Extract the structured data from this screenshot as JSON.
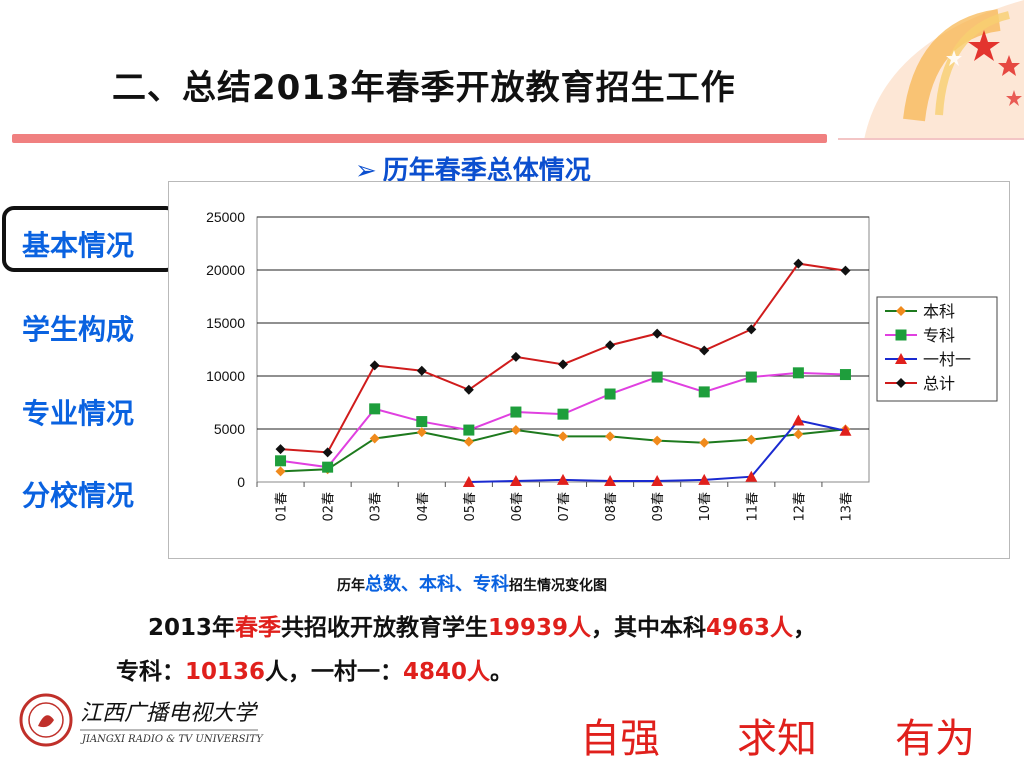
{
  "slide": {
    "title": "二、总结2013年春季开放教育招生工作",
    "subtitle_arrow": "➢",
    "subtitle": "历年春季总体情况"
  },
  "sidebar": {
    "items": [
      {
        "label": "基本情况"
      },
      {
        "label": "学生构成"
      },
      {
        "label": "专业情况"
      },
      {
        "label": "分校情况"
      }
    ]
  },
  "caption": {
    "prefix": "历年",
    "blue": "总数、本科、专科",
    "suffix": "招生情况变化图"
  },
  "summary": {
    "p1_a": "2013年",
    "p1_b": "春季",
    "p1_c": "共招收开放教育学生",
    "p1_d": "19939人",
    "p1_e": "，其中本科",
    "p1_f": "4963人",
    "p1_g": "，",
    "p2_a": "专科：",
    "p2_b": "10136",
    "p2_c": "人，一村一：",
    "p2_d": "4840人",
    "p2_e": "。"
  },
  "logo": {
    "name": "江西广播电视大学",
    "english": "JIANGXI RADIO & TV UNIVERSITY"
  },
  "motto": [
    "自强",
    "求知",
    "有为"
  ],
  "colors": {
    "accent_red": "#e0201c",
    "title_bar": "#f08080",
    "link_blue": "#0a62e0"
  },
  "chart_data": {
    "type": "line",
    "categories": [
      "01春",
      "02春",
      "03春",
      "04春",
      "05春",
      "06春",
      "07春",
      "08春",
      "09春",
      "10春",
      "11春",
      "12春",
      "13春"
    ],
    "ylim": [
      0,
      25000
    ],
    "yticks": [
      0,
      5000,
      10000,
      15000,
      20000,
      25000
    ],
    "grid": true,
    "legend_position": "right",
    "series": [
      {
        "name": "本科",
        "color": "#f08a1c",
        "line_color": "#1e7a1e",
        "marker": "diamond",
        "values": [
          1000,
          1200,
          4100,
          4700,
          3800,
          4900,
          4300,
          4300,
          3900,
          3700,
          4000,
          4500,
          4963
        ]
      },
      {
        "name": "专科",
        "color": "#1e9e3c",
        "line_color": "#e040e0",
        "marker": "square",
        "values": [
          2000,
          1400,
          6900,
          5700,
          4900,
          6600,
          6400,
          8300,
          9900,
          8500,
          9900,
          10300,
          10136
        ]
      },
      {
        "name": "一村一",
        "color": "#e0201c",
        "line_color": "#1a2ad0",
        "marker": "triangle",
        "values": [
          null,
          null,
          null,
          null,
          0,
          100,
          200,
          100,
          100,
          200,
          500,
          5800,
          4840
        ]
      },
      {
        "name": "总计",
        "color": "#111111",
        "line_color": "#d01c1c",
        "marker": "diamond",
        "values": [
          3100,
          2800,
          11000,
          10500,
          8700,
          11800,
          11100,
          12900,
          14000,
          12400,
          14400,
          20600,
          19939
        ]
      }
    ]
  }
}
